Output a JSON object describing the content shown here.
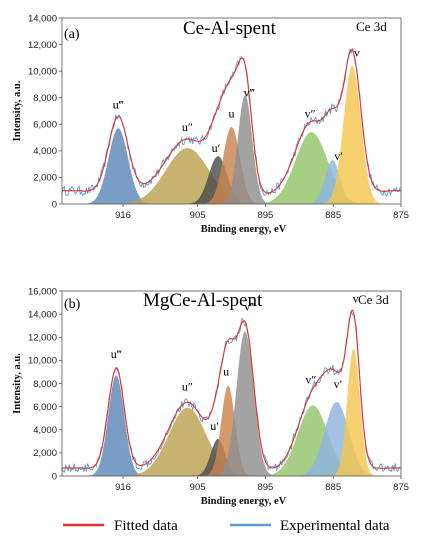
{
  "chart_data": [
    {
      "type": "area",
      "panel_label": "(a)",
      "title": "Ce-Al-spent",
      "subtitle": "Ce 3d",
      "xlabel": "Binding energy, eV",
      "ylabel": "Intensity, a.u.",
      "xlim": [
        925,
        875
      ],
      "xticks": [
        916,
        905,
        895,
        885,
        875
      ],
      "ylim": [
        0,
        14000
      ],
      "yticks": [
        0,
        2000,
        4000,
        6000,
        8000,
        10000,
        12000,
        14000
      ],
      "ytick_labels": [
        "0",
        "2,000",
        "4,000",
        "6,000",
        "8,000",
        "10,000",
        "12,000",
        "14,000"
      ],
      "baseline": 1000,
      "peaks": [
        {
          "label": "u‴",
          "center": 916.7,
          "height": 5700,
          "fwhm": 3.4,
          "color": "#5b87b8"
        },
        {
          "label": "u″",
          "center": 906.5,
          "height": 4200,
          "fwhm": 7.5,
          "color": "#bca14f"
        },
        {
          "label": "u′",
          "center": 902.0,
          "height": 3600,
          "fwhm": 3.2,
          "color": "#4d4d4d"
        },
        {
          "label": "u",
          "center": 900.0,
          "height": 5800,
          "fwhm": 2.9,
          "color": "#c98450"
        },
        {
          "label": "v‴",
          "center": 898.0,
          "height": 8200,
          "fwhm": 2.5,
          "color": "#8f8f8f"
        },
        {
          "label": "v″",
          "center": 888.2,
          "height": 5400,
          "fwhm": 5.6,
          "color": "#92c46a"
        },
        {
          "label": "v′",
          "center": 885.1,
          "height": 3300,
          "fwhm": 2.6,
          "color": "#8db3dd"
        },
        {
          "label": "v",
          "center": 882.2,
          "height": 10400,
          "fwhm": 3.0,
          "color": "#f4c64e"
        }
      ],
      "peak_labels": [
        {
          "text": "u‴",
          "x": 916.7,
          "y": 7200
        },
        {
          "text": "u″",
          "x": 906.5,
          "y": 5500
        },
        {
          "text": "u′",
          "x": 902.3,
          "y": 3900
        },
        {
          "text": "u",
          "x": 900.0,
          "y": 6500
        },
        {
          "text": "v‴",
          "x": 897.4,
          "y": 8100
        },
        {
          "text": "v″",
          "x": 888.4,
          "y": 6500
        },
        {
          "text": "v′",
          "x": 884.2,
          "y": 3300
        },
        {
          "text": "v",
          "x": 881.5,
          "y": 11100
        }
      ]
    },
    {
      "type": "area",
      "panel_label": "(b)",
      "title": "MgCe-Al-spent",
      "subtitle": "Ce 3d",
      "xlabel": "Binding energy, eV",
      "ylabel": "Intensity, a.u.",
      "xlim": [
        925,
        875
      ],
      "xticks": [
        916,
        905,
        895,
        885,
        875
      ],
      "ylim": [
        0,
        16000
      ],
      "yticks": [
        0,
        2000,
        4000,
        6000,
        8000,
        10000,
        12000,
        14000,
        16000
      ],
      "ytick_labels": [
        "0",
        "2,000",
        "4,000",
        "6,000",
        "8,000",
        "10,000",
        "12,000",
        "14,000",
        "16,000"
      ],
      "baseline": 700,
      "peaks": [
        {
          "label": "u‴",
          "center": 917.0,
          "height": 8700,
          "fwhm": 2.8,
          "color": "#5b87b8"
        },
        {
          "label": "u″",
          "center": 906.5,
          "height": 5900,
          "fwhm": 6.5,
          "color": "#bca14f"
        },
        {
          "label": "u′",
          "center": 902.0,
          "height": 3200,
          "fwhm": 2.5,
          "color": "#4d4d4d"
        },
        {
          "label": "u",
          "center": 900.5,
          "height": 7800,
          "fwhm": 2.4,
          "color": "#c98450"
        },
        {
          "label": "v‴",
          "center": 898.0,
          "height": 12500,
          "fwhm": 3.0,
          "color": "#8f8f8f"
        },
        {
          "label": "v″",
          "center": 888.0,
          "height": 6100,
          "fwhm": 5.2,
          "color": "#92c46a"
        },
        {
          "label": "v′",
          "center": 884.5,
          "height": 6400,
          "fwhm": 4.2,
          "color": "#8db3dd"
        },
        {
          "label": "v",
          "center": 882.0,
          "height": 11000,
          "fwhm": 2.2,
          "color": "#f4c64e"
        }
      ],
      "peak_labels": [
        {
          "text": "u‴",
          "x": 917.0,
          "y": 10200
        },
        {
          "text": "u″",
          "x": 906.5,
          "y": 7400
        },
        {
          "text": "u′",
          "x": 902.5,
          "y": 4000
        },
        {
          "text": "u",
          "x": 900.8,
          "y": 8700
        },
        {
          "text": "v‴",
          "x": 897.3,
          "y": 14300
        },
        {
          "text": "v″",
          "x": 888.3,
          "y": 8000
        },
        {
          "text": "v′",
          "x": 884.3,
          "y": 7600
        },
        {
          "text": "v",
          "x": 881.7,
          "y": 15000
        }
      ]
    }
  ],
  "legend": [
    {
      "label": "Fitted data",
      "color": "#e8322d"
    },
    {
      "label": "Experimental data",
      "color": "#5b9bd5"
    }
  ]
}
